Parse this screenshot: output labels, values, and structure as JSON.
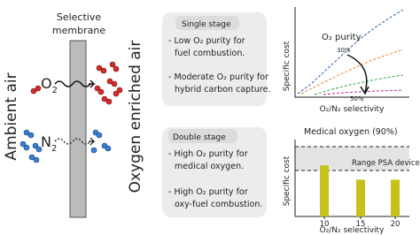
{
  "left": {
    "membrane_label": [
      "Selective",
      "membrane"
    ],
    "inlet_label": "Ambient air",
    "outlet_label": "Oxygen enriched air",
    "o2": "O",
    "o2_sub": "2",
    "n2": "N",
    "n2_sub": "2"
  },
  "boxes": [
    {
      "title": "Single stage",
      "lines": [
        "- Low O₂ purity for",
        "fuel combustion.",
        "- Moderate O₂ purity for",
        "hybrid carbon capture."
      ]
    },
    {
      "title": "Double stage",
      "lines": [
        "- High O₂ purity for",
        "medical oxygen.",
        "- High O₂ purity for",
        "oxy-fuel combustion."
      ]
    }
  ],
  "cost_chart": {
    "y_label": "Specific cost",
    "x_label": "O₂/N₂ selectivity",
    "legend_title": "O₂ purity",
    "labels": [
      "30%",
      "50%"
    ]
  },
  "bar_chart": {
    "title": "Medical oxygen (90%)",
    "y_label": "Specific cost",
    "x_label": "O₂/N₂ selectivity",
    "band_label": "Range PSA devices",
    "categories": [
      10,
      15,
      20
    ],
    "values": [
      0.68,
      0.49,
      0.49
    ],
    "ylim": [
      0,
      1
    ],
    "color": "#c5c21c"
  }
}
